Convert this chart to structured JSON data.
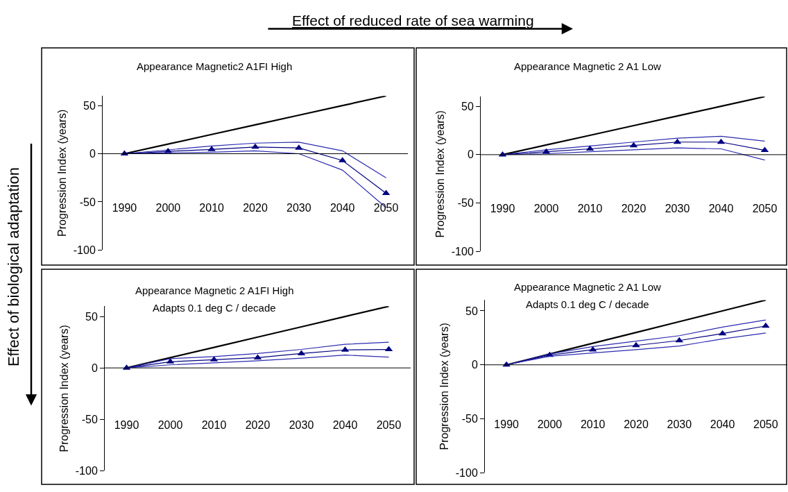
{
  "chart_data": [
    {
      "type": "line",
      "title": "Appearance Magnetic2 A1FI High",
      "ylabel": "Progression Index (years)",
      "categories": [
        "1990",
        "2000",
        "2010",
        "2020",
        "2030",
        "2040",
        "2050"
      ],
      "ylim": [
        -100,
        60
      ],
      "yticks": [
        -100,
        -50,
        0,
        50
      ],
      "grid": false,
      "ref_lines": [
        {
          "axis": "y",
          "value": 0,
          "color": "#000000"
        }
      ],
      "series": [
        {
          "color": "#000000",
          "marker": "none",
          "values": [
            0,
            10,
            20,
            30,
            40,
            50,
            60
          ]
        },
        {
          "color": "#2b2bb0",
          "marker": "none",
          "values": [
            0,
            4,
            8,
            11,
            12,
            3,
            -25
          ]
        },
        {
          "color": "#000080",
          "marker": "triangle",
          "values": [
            0,
            2.5,
            4.5,
            7,
            6,
            -7,
            -41
          ]
        },
        {
          "color": "#2b2bb0",
          "marker": "none",
          "values": [
            0,
            1,
            1.5,
            3,
            0,
            -17,
            -56
          ]
        }
      ]
    },
    {
      "type": "line",
      "title": "Appearance Magnetic 2 A1 Low",
      "ylabel": "Progression Index (years)",
      "categories": [
        "1990",
        "2000",
        "2010",
        "2020",
        "2030",
        "2040",
        "2050"
      ],
      "ylim": [
        -100,
        60
      ],
      "yticks": [
        -100,
        -50,
        0,
        50
      ],
      "grid": false,
      "ref_lines": [
        {
          "axis": "y",
          "value": 0,
          "color": "#000000"
        }
      ],
      "series": [
        {
          "color": "#000000",
          "marker": "none",
          "values": [
            0,
            10,
            20,
            30,
            40,
            50,
            60
          ]
        },
        {
          "color": "#2b2bb0",
          "marker": "none",
          "values": [
            0,
            5,
            9,
            13,
            17,
            19,
            14
          ]
        },
        {
          "color": "#000080",
          "marker": "triangle",
          "values": [
            0,
            3,
            6,
            9.5,
            13,
            13,
            4.5
          ]
        },
        {
          "color": "#2b2bb0",
          "marker": "none",
          "values": [
            0,
            1,
            3,
            5,
            7,
            6,
            -5.5
          ]
        }
      ]
    },
    {
      "type": "line",
      "title": "Appearance Magnetic 2 A1FI High",
      "subtitle": "Adapts 0.1 deg C / decade",
      "ylabel": "Progression Index (years)",
      "categories": [
        "1990",
        "2000",
        "2010",
        "2020",
        "2030",
        "2040",
        "2050"
      ],
      "ylim": [
        -100,
        60
      ],
      "yticks": [
        -100,
        -50,
        0,
        50
      ],
      "grid": false,
      "ref_lines": [
        {
          "axis": "y",
          "value": 0,
          "color": "#000000"
        }
      ],
      "series": [
        {
          "color": "#000000",
          "marker": "none",
          "values": [
            0,
            10,
            20,
            30,
            40,
            50,
            60
          ]
        },
        {
          "color": "#2b2bb0",
          "marker": "none",
          "values": [
            0,
            9,
            11,
            14,
            18,
            23,
            25
          ]
        },
        {
          "color": "#000080",
          "marker": "triangle",
          "values": [
            0,
            6,
            8,
            10,
            14,
            17.5,
            18
          ]
        },
        {
          "color": "#2b2bb0",
          "marker": "none",
          "values": [
            0,
            3,
            5,
            7,
            9.5,
            12.5,
            10.5
          ]
        }
      ]
    },
    {
      "type": "line",
      "title": "Appearance Magnetic 2 A1 Low",
      "subtitle": "Adapts 0.1 deg C / decade",
      "ylabel": "Progression Index (years)",
      "categories": [
        "1990",
        "2000",
        "2010",
        "2020",
        "2030",
        "2040",
        "2050"
      ],
      "ylim": [
        -100,
        60
      ],
      "yticks": [
        -100,
        -50,
        0,
        50
      ],
      "grid": false,
      "ref_lines": [
        {
          "axis": "y",
          "value": 0,
          "color": "#000000"
        }
      ],
      "series": [
        {
          "color": "#000000",
          "marker": "none",
          "values": [
            0,
            10,
            20,
            30,
            40,
            50,
            60
          ]
        },
        {
          "color": "#2b2bb0",
          "marker": "none",
          "values": [
            0,
            10,
            17,
            22,
            27,
            35,
            41.5
          ]
        },
        {
          "color": "#000080",
          "marker": "triangle",
          "values": [
            0,
            9,
            14,
            18,
            22.5,
            29,
            36
          ]
        },
        {
          "color": "#2b2bb0",
          "marker": "none",
          "values": [
            0,
            8,
            11,
            14,
            17.5,
            24,
            29.5
          ]
        }
      ]
    },
    {
      "type": "other",
      "annotations": [
        "Effect of reduced rate of sea warming",
        "Effect of biological adaptation"
      ]
    }
  ]
}
